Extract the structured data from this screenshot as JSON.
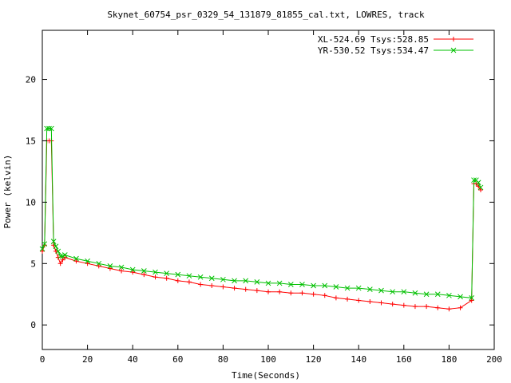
{
  "chart_data": {
    "type": "scatter",
    "title": "Skynet_60754_psr_0329_54_131879_81855_cal.txt, LOWRES, track",
    "xlabel": "Time(Seconds)",
    "ylabel": "Power (kelvin)",
    "xlim": [
      0,
      200
    ],
    "ylim": [
      -2,
      24
    ],
    "x_ticks": [
      "0",
      "20",
      "40",
      "60",
      "80",
      "100",
      "120",
      "140",
      "160",
      "180",
      "200"
    ],
    "y_ticks": [
      "0",
      "5",
      "10",
      "15",
      "20"
    ],
    "x_tick_values": [
      0,
      20,
      40,
      60,
      80,
      100,
      120,
      140,
      160,
      180,
      200
    ],
    "y_tick_values": [
      0,
      5,
      10,
      15,
      20
    ],
    "grid": false,
    "legend_position": "top-right",
    "series": [
      {
        "name": "XL-524.69 Tsys:528.85",
        "color": "#ff0000",
        "marker": "plus",
        "x": [
          0,
          1,
          2,
          3,
          4,
          5,
          6,
          7,
          8,
          9,
          10,
          15,
          20,
          25,
          30,
          35,
          40,
          45,
          50,
          55,
          60,
          65,
          70,
          75,
          80,
          85,
          90,
          95,
          100,
          105,
          110,
          115,
          120,
          125,
          130,
          135,
          140,
          145,
          150,
          155,
          160,
          165,
          170,
          175,
          180,
          185,
          190,
          191,
          192,
          193,
          194
        ],
        "y": [
          6,
          6.5,
          15,
          15,
          15,
          6.5,
          6,
          5.5,
          5,
          5.3,
          5.5,
          5.2,
          5,
          4.8,
          4.6,
          4.4,
          4.3,
          4.1,
          3.9,
          3.8,
          3.6,
          3.5,
          3.3,
          3.2,
          3.1,
          3,
          2.9,
          2.8,
          2.7,
          2.7,
          2.6,
          2.6,
          2.5,
          2.4,
          2.2,
          2.1,
          2,
          1.9,
          1.8,
          1.7,
          1.6,
          1.5,
          1.5,
          1.4,
          1.3,
          1.4,
          2,
          11.5,
          11.5,
          11.3,
          11
        ]
      },
      {
        "name": "YR-530.52 Tsys:534.47",
        "color": "#00c000",
        "marker": "cross",
        "x": [
          0,
          1,
          2,
          3,
          4,
          5,
          6,
          7,
          8,
          9,
          10,
          15,
          20,
          25,
          30,
          35,
          40,
          45,
          50,
          55,
          60,
          65,
          70,
          75,
          80,
          85,
          90,
          95,
          100,
          105,
          110,
          115,
          120,
          125,
          130,
          135,
          140,
          145,
          150,
          155,
          160,
          165,
          170,
          175,
          180,
          185,
          190,
          191,
          192,
          193,
          194
        ],
        "y": [
          6.2,
          6.6,
          16,
          16,
          16,
          6.8,
          6.4,
          6,
          5.6,
          5.6,
          5.7,
          5.4,
          5.2,
          5,
          4.8,
          4.7,
          4.5,
          4.4,
          4.3,
          4.2,
          4.1,
          4,
          3.9,
          3.8,
          3.7,
          3.6,
          3.6,
          3.5,
          3.4,
          3.4,
          3.3,
          3.3,
          3.2,
          3.2,
          3.1,
          3,
          3,
          2.9,
          2.8,
          2.7,
          2.7,
          2.6,
          2.5,
          2.5,
          2.4,
          2.3,
          2.2,
          11.8,
          11.8,
          11.6,
          11.2
        ]
      }
    ]
  }
}
